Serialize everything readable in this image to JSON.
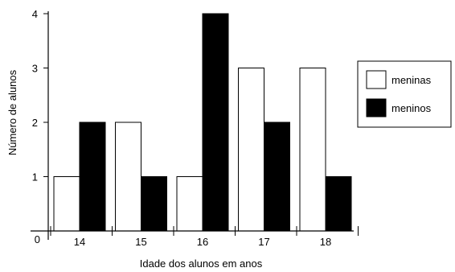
{
  "chart_data": {
    "type": "bar",
    "title": "",
    "xlabel": "Idade dos alunos em anos",
    "ylabel": "Número de alunos",
    "categories": [
      "14",
      "15",
      "16",
      "17",
      "18"
    ],
    "series": [
      {
        "name": "meninas",
        "values": [
          1,
          2,
          1,
          3,
          3
        ],
        "color": "#ffffff"
      },
      {
        "name": "meninos",
        "values": [
          2,
          1,
          4,
          2,
          1
        ],
        "color": "#000000"
      }
    ],
    "yticks": [
      "0",
      "1",
      "2",
      "3",
      "4"
    ],
    "ylim": [
      0,
      4
    ],
    "grid": false,
    "legend_position": "right"
  }
}
